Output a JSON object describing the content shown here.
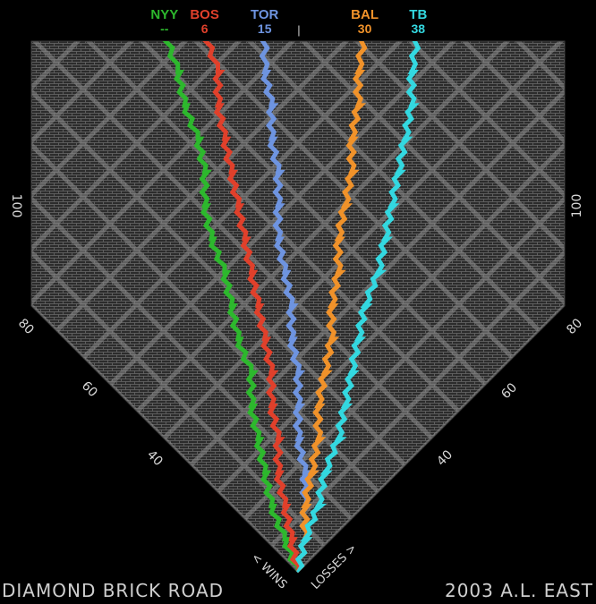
{
  "chart_data": {
    "type": "line",
    "title": "DIAMOND BRICK ROAD",
    "subtitle": "2003 A.L. EAST",
    "xlabel": "< WINS",
    "ylabel": "LOSSES >",
    "wins_ticks": [
      "40",
      "60",
      "80",
      "100"
    ],
    "losses_ticks": [
      "40",
      "60",
      "80",
      "100"
    ],
    "range": [
      0,
      162
    ],
    "grid": true,
    "games_back_header": "|",
    "series": [
      {
        "abbr": "NYY",
        "games_back": "--",
        "color": "#2db82d",
        "final_wins": 101,
        "final_losses": 61,
        "x": [
          0,
          10,
          20,
          30,
          40,
          50,
          60,
          70,
          80,
          90,
          100,
          110,
          120,
          130,
          140,
          150,
          162
        ],
        "y": [
          0,
          7,
          14,
          20,
          26,
          32,
          37,
          44,
          50,
          56,
          63,
          69,
          74,
          80,
          87,
          93,
          101
        ]
      },
      {
        "abbr": "BOS",
        "games_back": "6",
        "color": "#e0402b",
        "final_wins": 95,
        "final_losses": 67,
        "x": [
          0,
          10,
          20,
          30,
          40,
          50,
          60,
          70,
          80,
          90,
          100,
          110,
          120,
          130,
          140,
          150,
          162
        ],
        "y": [
          0,
          6,
          12,
          18,
          23,
          29,
          34,
          40,
          46,
          52,
          58,
          64,
          70,
          76,
          82,
          87,
          95
        ]
      },
      {
        "abbr": "TOR",
        "games_back": "15",
        "color": "#6e94e0",
        "final_wins": 86,
        "final_losses": 76,
        "x": [
          0,
          10,
          20,
          30,
          40,
          50,
          60,
          70,
          80,
          90,
          100,
          110,
          120,
          130,
          140,
          150,
          162
        ],
        "y": [
          0,
          4,
          9,
          14,
          20,
          25,
          30,
          36,
          41,
          47,
          53,
          58,
          63,
          69,
          74,
          80,
          86
        ]
      },
      {
        "abbr": "BAL",
        "games_back": "30",
        "color": "#f0922a",
        "final_wins": 71,
        "final_losses": 91,
        "x": [
          0,
          10,
          20,
          30,
          40,
          50,
          60,
          70,
          80,
          90,
          100,
          110,
          120,
          130,
          140,
          150,
          162
        ],
        "y": [
          0,
          4,
          9,
          13,
          17,
          22,
          26,
          30,
          35,
          39,
          44,
          48,
          52,
          57,
          61,
          66,
          71
        ]
      },
      {
        "abbr": "TB",
        "games_back": "38",
        "color": "#33d8e0",
        "final_wins": 63,
        "final_losses": 99,
        "x": [
          0,
          10,
          20,
          30,
          40,
          50,
          60,
          70,
          80,
          90,
          100,
          110,
          120,
          130,
          140,
          150,
          162
        ],
        "y": [
          0,
          4,
          7,
          11,
          14,
          18,
          22,
          26,
          30,
          33,
          37,
          41,
          45,
          49,
          53,
          58,
          63
        ]
      }
    ]
  }
}
